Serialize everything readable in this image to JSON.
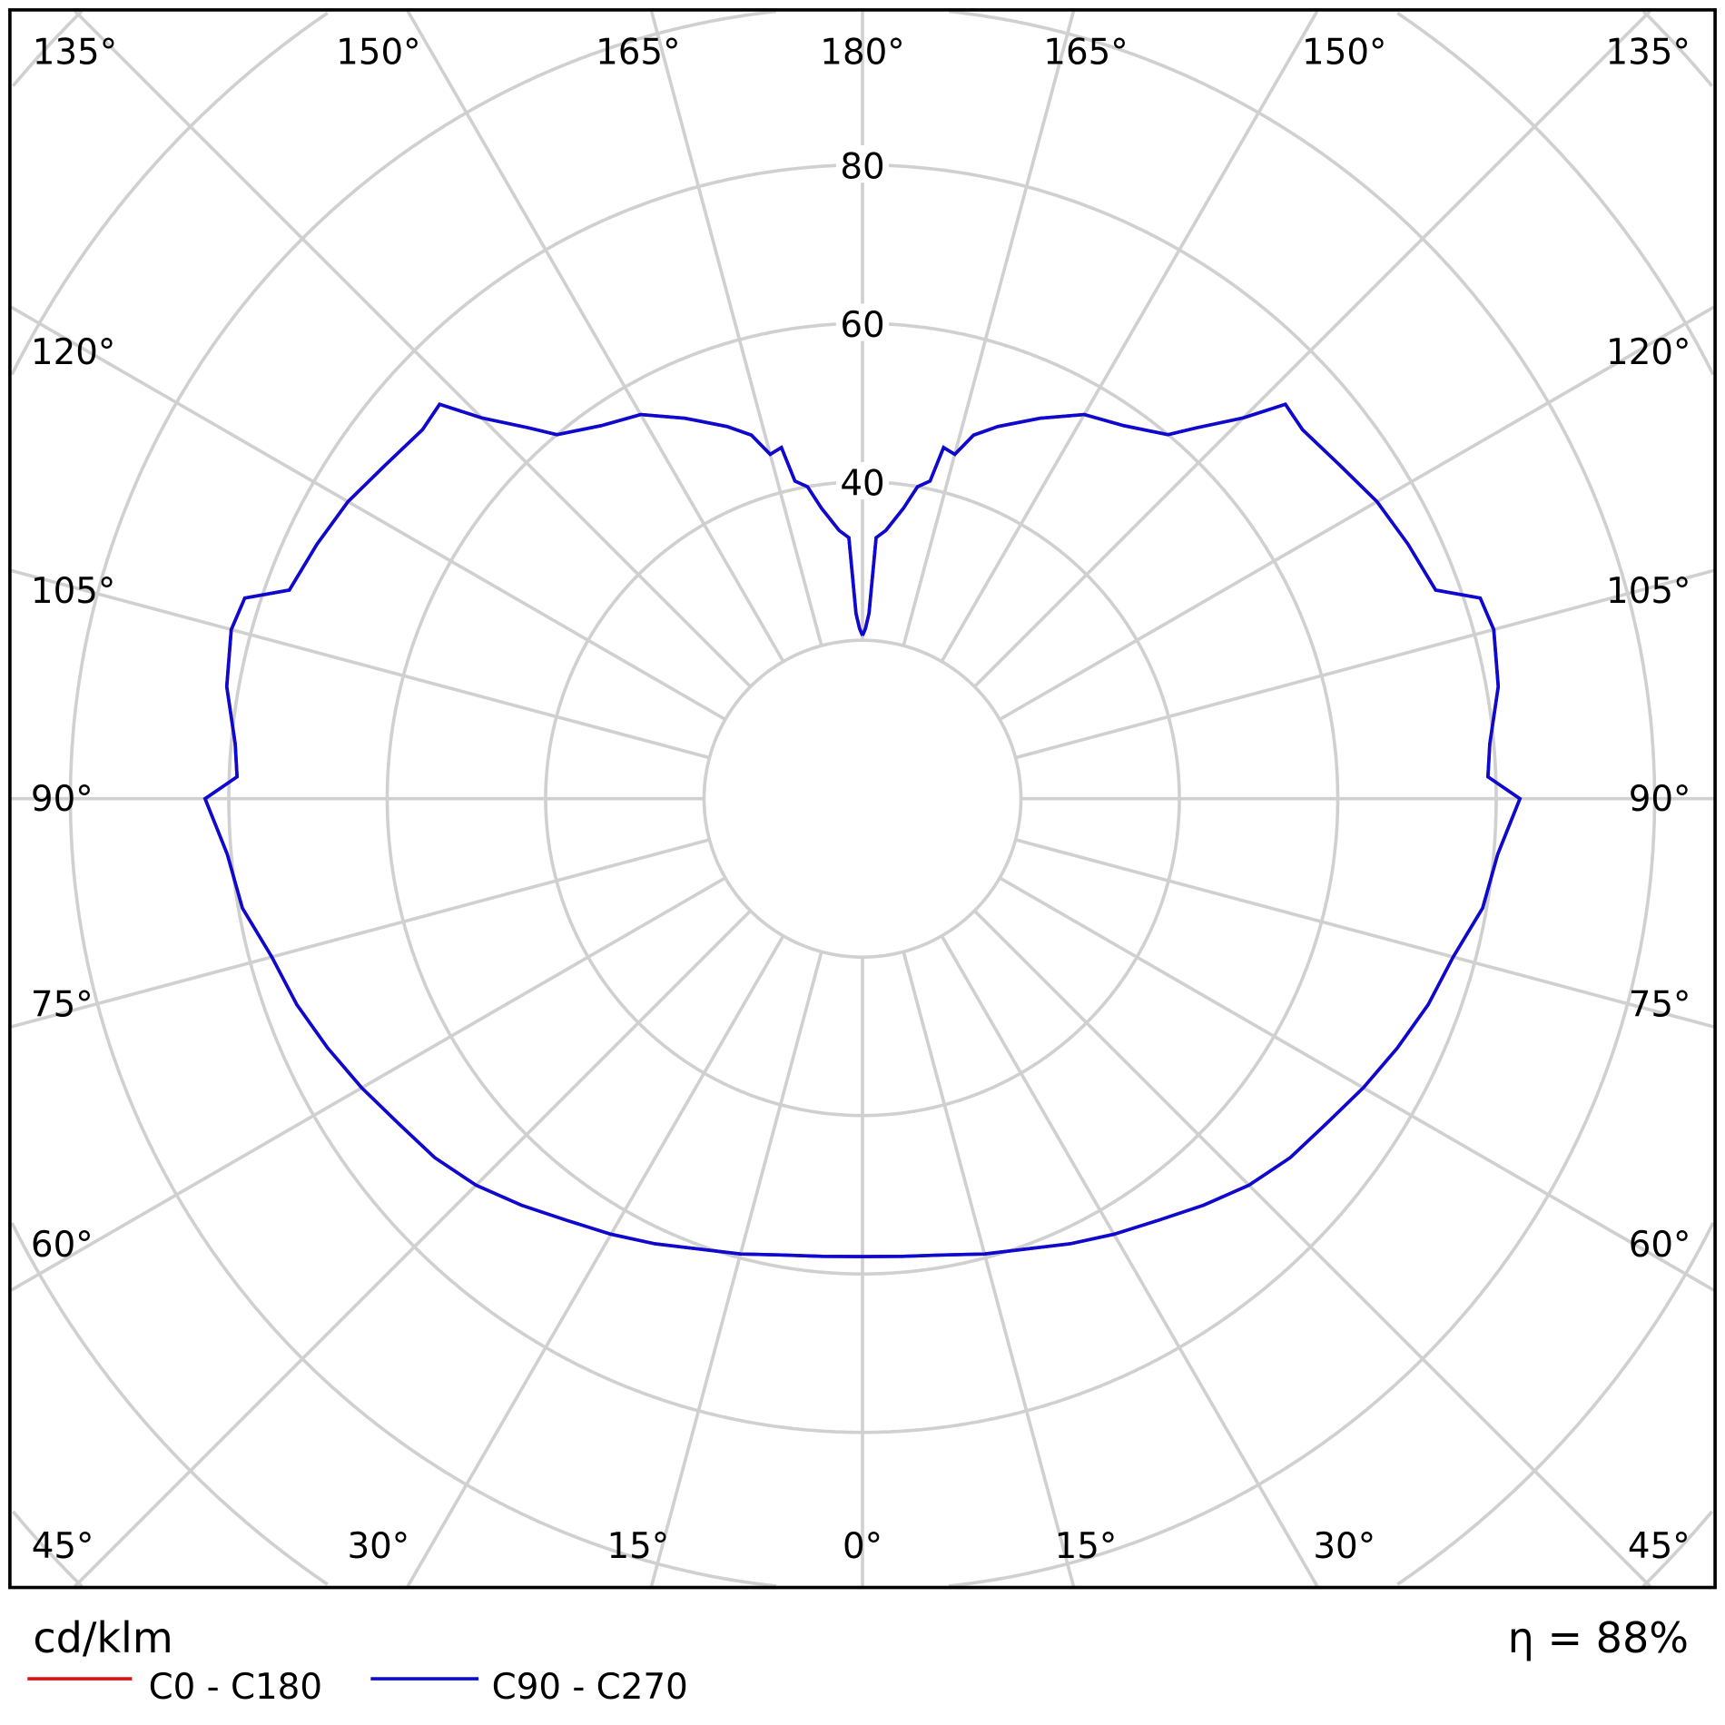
{
  "chart_data": {
    "type": "polar",
    "unit_label": "cd/klm",
    "efficiency_label": "η = 88%",
    "radial_range": [
      0,
      140
    ],
    "radial_rings": [
      20,
      40,
      60,
      80,
      100,
      120,
      140
    ],
    "radial_tick_labels": [
      "40",
      "60",
      "80"
    ],
    "angle_step_deg": 15,
    "grid": true,
    "angle_labels": {
      "top": [
        "135°",
        "150°",
        "165°",
        "180°",
        "165°",
        "150°",
        "135°"
      ],
      "left": [
        "120°",
        "105°",
        "90°",
        "75°",
        "60°"
      ],
      "right": [
        "120°",
        "105°",
        "90°",
        "75°",
        "60°"
      ],
      "bottom": [
        "45°",
        "30°",
        "15°",
        "0°",
        "15°",
        "30°",
        "45°"
      ]
    },
    "legend_position": "bottom-left",
    "gamma_deg": [
      0,
      5,
      10,
      15,
      20,
      25,
      30,
      35,
      40,
      45,
      50,
      55,
      60,
      65,
      70,
      75,
      80,
      85,
      90,
      92,
      95,
      100,
      105,
      108,
      110,
      115,
      120,
      125,
      130,
      133,
      135,
      138,
      140,
      145,
      150,
      155,
      160,
      163,
      165,
      167,
      168,
      170,
      172,
      175,
      177,
      178,
      179,
      180
    ],
    "series": [
      {
        "name": "C0 - C180",
        "color": "#e01010",
        "values": [
          57.8,
          58,
          58.5,
          59.5,
          60.5,
          62,
          63.5,
          65,
          67,
          69,
          70.5,
          71.5,
          73,
          74.5,
          76,
          77.2,
          79.5,
          80.5,
          83,
          79,
          79.5,
          81.5,
          82.5,
          82,
          77,
          76,
          75,
          73.5,
          72.5,
          73,
          68,
          63,
          60,
          57.5,
          56,
          53,
          50,
          48,
          45,
          45.5,
          41,
          40,
          37,
          34,
          33,
          23.4,
          21.5,
          20.6
        ]
      },
      {
        "name": "C90 - C270",
        "color": "#0a0ad2",
        "values": [
          57.8,
          58,
          58.5,
          59.5,
          60.5,
          62,
          63.5,
          65,
          67,
          69,
          70.5,
          71.5,
          73,
          74.5,
          76,
          77.2,
          79.5,
          80.5,
          83,
          79,
          79.5,
          81.5,
          82.5,
          82,
          77,
          76,
          75,
          73.5,
          72.5,
          73,
          68,
          63,
          60,
          57.5,
          56,
          53,
          50,
          48,
          45,
          45.5,
          41,
          40,
          37,
          34,
          33,
          23.4,
          21.5,
          20.6
        ]
      }
    ]
  }
}
